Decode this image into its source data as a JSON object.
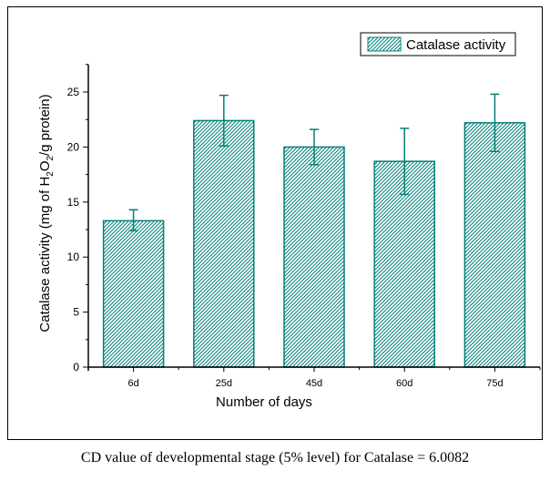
{
  "chart_data": {
    "type": "bar",
    "title": "",
    "xlabel": "Number of days",
    "ylabel_parts": [
      "Catalase activity (mg of H",
      "2",
      "O",
      "2",
      "/g protein)"
    ],
    "ylabel": "Catalase activity (mg of H2O2/g protein)",
    "categories": [
      "6d",
      "25d",
      "45d",
      "60d",
      "75d"
    ],
    "series": [
      {
        "name": "Catalase activity",
        "values": [
          13.3,
          22.4,
          20.0,
          18.7,
          22.2
        ],
        "error_low": [
          12.4,
          20.1,
          18.4,
          15.7,
          19.6
        ],
        "error_high": [
          14.3,
          24.7,
          21.6,
          21.7,
          24.8
        ],
        "color": "#00807a",
        "pattern": "diagonal-hatch"
      }
    ],
    "ylim": [
      0,
      27.5
    ],
    "yticks": [
      0,
      5,
      10,
      15,
      20,
      25
    ],
    "ytick_labels": [
      "0",
      "5",
      "10",
      "15",
      "20",
      "25"
    ],
    "grid": false,
    "legend": {
      "position": "top-right",
      "entries": [
        "Catalase activity"
      ]
    }
  },
  "caption": "CD value of developmental stage (5% level) for Catalase = 6.0082"
}
